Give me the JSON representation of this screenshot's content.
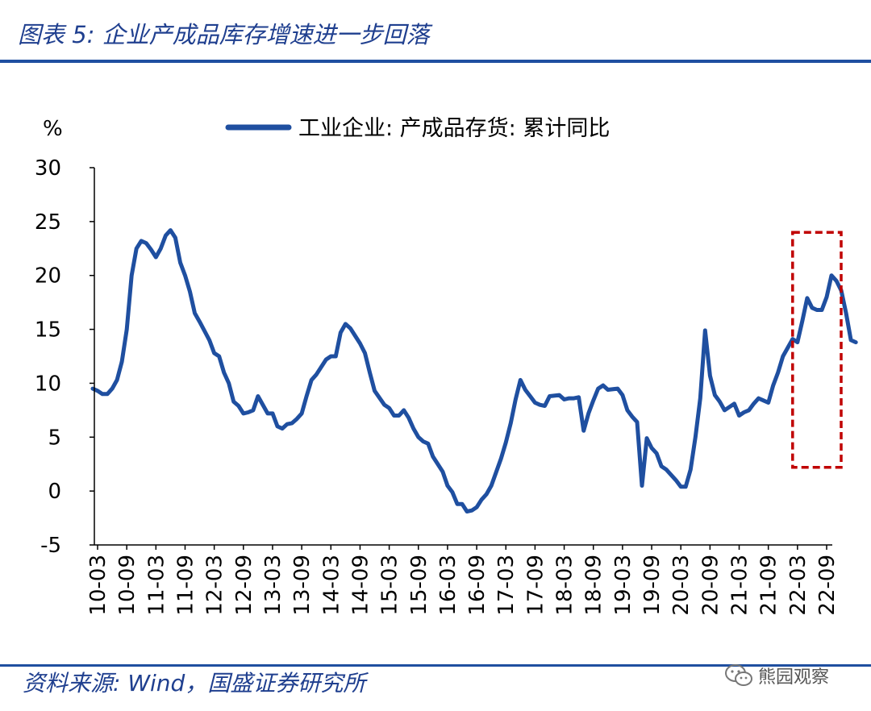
{
  "header": {
    "title": "图表 5:  企业产成品库存增速进一步回落"
  },
  "footer": {
    "source": "资料来源:  Wind，国盛证券研究所",
    "watermark": "熊园观察",
    "watermark_icon": "wechat-icon"
  },
  "chart_data": {
    "type": "line",
    "ylabel": "%",
    "ylim": [
      -5,
      30
    ],
    "yticks": [
      -5,
      0,
      5,
      10,
      15,
      20,
      25,
      30
    ],
    "xticks": [
      "10-03",
      "10-09",
      "11-03",
      "11-09",
      "12-03",
      "12-09",
      "13-03",
      "13-09",
      "14-03",
      "14-09",
      "15-03",
      "15-09",
      "16-03",
      "16-09",
      "17-03",
      "17-09",
      "18-03",
      "18-09",
      "19-03",
      "19-09",
      "20-03",
      "20-09",
      "21-03",
      "21-09",
      "22-03",
      "22-09"
    ],
    "grid": false,
    "legend_position": "top-center",
    "highlight": {
      "x_range": [
        "22-02",
        "22-09"
      ],
      "y_range": [
        2.2,
        24
      ],
      "color": "#c00000",
      "style": "dashed"
    },
    "series": [
      {
        "name": "工业企业: 产成品存货: 累计同比",
        "color": "#1f4fa0",
        "points": [
          [
            "10-02",
            9.5
          ],
          [
            "10-03",
            9.3
          ],
          [
            "10-04",
            9.0
          ],
          [
            "10-05",
            9.0
          ],
          [
            "10-06",
            9.5
          ],
          [
            "10-07",
            10.3
          ],
          [
            "10-08",
            12.0
          ],
          [
            "10-09",
            15.0
          ],
          [
            "10-10",
            20.0
          ],
          [
            "10-11",
            22.5
          ],
          [
            "10-12",
            23.2
          ],
          [
            "11-01",
            23.0
          ],
          [
            "11-02",
            22.4
          ],
          [
            "11-03",
            21.7
          ],
          [
            "11-04",
            22.5
          ],
          [
            "11-05",
            23.7
          ],
          [
            "11-06",
            24.2
          ],
          [
            "11-07",
            23.5
          ],
          [
            "11-08",
            21.2
          ],
          [
            "11-09",
            20.0
          ],
          [
            "11-10",
            18.5
          ],
          [
            "11-11",
            16.5
          ],
          [
            "11-12",
            15.7
          ],
          [
            "12-02",
            14.0
          ],
          [
            "12-03",
            12.8
          ],
          [
            "12-04",
            12.5
          ],
          [
            "12-05",
            11.0
          ],
          [
            "12-06",
            10.0
          ],
          [
            "12-07",
            8.3
          ],
          [
            "12-08",
            7.9
          ],
          [
            "12-09",
            7.2
          ],
          [
            "12-10",
            7.3
          ],
          [
            "12-11",
            7.5
          ],
          [
            "12-12",
            8.8
          ],
          [
            "13-02",
            7.2
          ],
          [
            "13-03",
            7.2
          ],
          [
            "13-04",
            6.0
          ],
          [
            "13-05",
            5.8
          ],
          [
            "13-06",
            6.2
          ],
          [
            "13-07",
            6.3
          ],
          [
            "13-08",
            6.7
          ],
          [
            "13-09",
            7.2
          ],
          [
            "13-10",
            8.8
          ],
          [
            "13-11",
            10.3
          ],
          [
            "13-12",
            10.8
          ],
          [
            "14-02",
            12.2
          ],
          [
            "14-03",
            12.5
          ],
          [
            "14-04",
            12.5
          ],
          [
            "14-05",
            14.7
          ],
          [
            "14-06",
            15.5
          ],
          [
            "14-07",
            15.1
          ],
          [
            "14-08",
            14.4
          ],
          [
            "14-09",
            13.7
          ],
          [
            "14-10",
            12.8
          ],
          [
            "14-11",
            11.0
          ],
          [
            "14-12",
            9.3
          ],
          [
            "15-02",
            8.0
          ],
          [
            "15-03",
            7.7
          ],
          [
            "15-04",
            7.0
          ],
          [
            "15-05",
            7.0
          ],
          [
            "15-06",
            7.5
          ],
          [
            "15-07",
            6.8
          ],
          [
            "15-08",
            5.8
          ],
          [
            "15-09",
            5.0
          ],
          [
            "15-10",
            4.6
          ],
          [
            "15-11",
            4.4
          ],
          [
            "15-12",
            3.2
          ],
          [
            "16-02",
            1.8
          ],
          [
            "16-03",
            0.5
          ],
          [
            "16-04",
            -0.1
          ],
          [
            "16-05",
            -1.2
          ],
          [
            "16-06",
            -1.2
          ],
          [
            "16-07",
            -1.9
          ],
          [
            "16-08",
            -1.8
          ],
          [
            "16-09",
            -1.5
          ],
          [
            "16-10",
            -0.8
          ],
          [
            "16-11",
            -0.3
          ],
          [
            "16-12",
            0.5
          ],
          [
            "17-02",
            3.0
          ],
          [
            "17-03",
            4.5
          ],
          [
            "17-04",
            6.3
          ],
          [
            "17-05",
            8.5
          ],
          [
            "17-06",
            10.3
          ],
          [
            "17-07",
            9.4
          ],
          [
            "17-08",
            8.8
          ],
          [
            "17-09",
            8.2
          ],
          [
            "17-10",
            8.0
          ],
          [
            "17-11",
            7.9
          ],
          [
            "17-12",
            8.8
          ],
          [
            "18-02",
            8.9
          ],
          [
            "18-03",
            8.5
          ],
          [
            "18-04",
            8.6
          ],
          [
            "18-05",
            8.6
          ],
          [
            "18-06",
            8.7
          ],
          [
            "18-07",
            5.6
          ],
          [
            "18-08",
            7.2
          ],
          [
            "18-09",
            8.4
          ],
          [
            "18-10",
            9.5
          ],
          [
            "18-11",
            9.8
          ],
          [
            "18-12",
            9.4
          ],
          [
            "19-02",
            9.5
          ],
          [
            "19-03",
            8.9
          ],
          [
            "19-04",
            7.5
          ],
          [
            "19-05",
            6.9
          ],
          [
            "19-06",
            6.4
          ],
          [
            "19-07",
            0.5
          ],
          [
            "19-08",
            4.9
          ],
          [
            "19-09",
            4.0
          ],
          [
            "19-10",
            3.5
          ],
          [
            "19-11",
            2.3
          ],
          [
            "19-12",
            2.0
          ],
          [
            "20-02",
            1.0
          ],
          [
            "20-03",
            0.4
          ],
          [
            "20-04",
            0.4
          ],
          [
            "20-05",
            2.0
          ],
          [
            "20-06",
            5.0
          ],
          [
            "20-07",
            8.6
          ],
          [
            "20-08",
            14.9
          ],
          [
            "20-09",
            10.7
          ],
          [
            "20-10",
            8.9
          ],
          [
            "20-11",
            8.3
          ],
          [
            "20-12",
            7.5
          ],
          [
            "21-02",
            8.1
          ],
          [
            "21-03",
            7.0
          ],
          [
            "21-04",
            7.3
          ],
          [
            "21-05",
            7.5
          ],
          [
            "21-06",
            8.1
          ],
          [
            "21-07",
            8.6
          ],
          [
            "21-08",
            8.4
          ],
          [
            "21-09",
            8.2
          ],
          [
            "21-10",
            9.8
          ],
          [
            "21-11",
            11.0
          ],
          [
            "21-12",
            12.5
          ],
          [
            "22-02",
            14.1
          ],
          [
            "22-03",
            13.8
          ],
          [
            "22-04",
            15.8
          ],
          [
            "22-05",
            17.9
          ],
          [
            "22-06",
            17.0
          ],
          [
            "22-07",
            16.8
          ],
          [
            "22-08",
            16.8
          ],
          [
            "22-09",
            18.0
          ],
          [
            "22-10",
            20.0
          ],
          [
            "22-11",
            19.5
          ],
          [
            "22-12",
            18.6
          ],
          [
            "23-01",
            16.5
          ],
          [
            "23-02",
            14.0
          ],
          [
            "23-03",
            13.8
          ]
        ]
      }
    ]
  }
}
